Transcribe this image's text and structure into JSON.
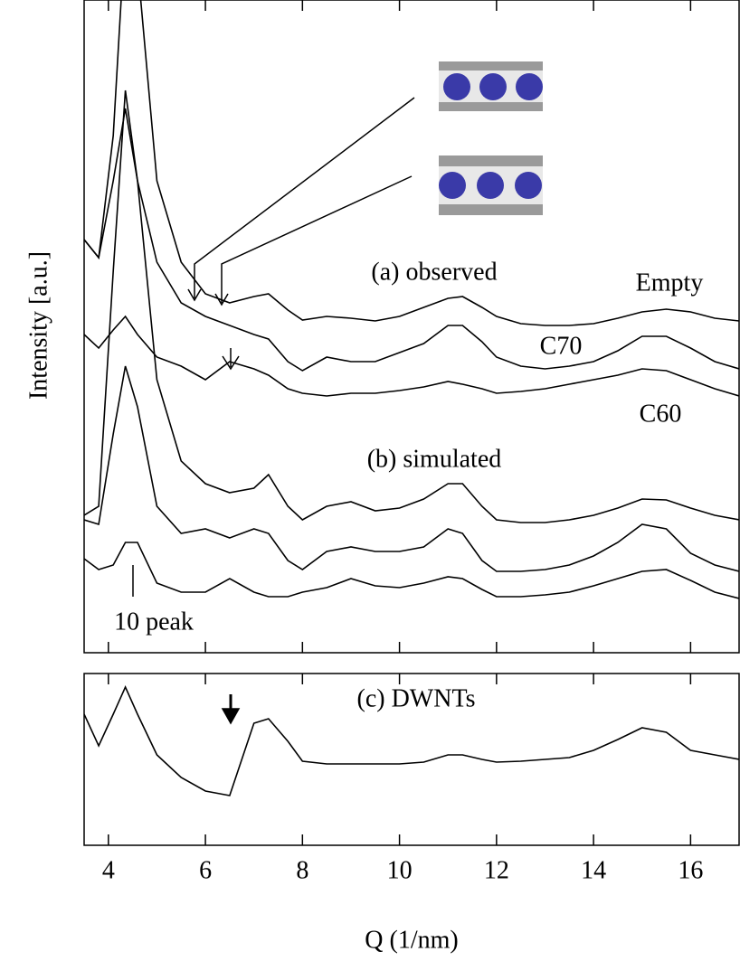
{
  "chart_data": [
    {
      "type": "line",
      "ylabel": "Intensity [a.u.]",
      "xlim": [
        3.5,
        17
      ],
      "ylim": [
        0,
        722
      ],
      "annotations": [
        "(a) observed",
        "(b) simulated",
        "10 peak"
      ],
      "x": [
        3.5,
        3.8,
        4.1,
        4.35,
        4.6,
        5,
        5.5,
        6,
        6.5,
        7,
        7.3,
        7.7,
        8,
        8.5,
        9,
        9.5,
        10,
        10.5,
        11,
        11.3,
        11.7,
        12,
        12.5,
        13,
        13.5,
        14,
        14.5,
        15,
        15.5,
        16,
        16.5,
        17
      ],
      "series": [
        {
          "name": "Empty",
          "color": "#000000",
          "values": [
            457,
            437,
            572,
            802,
            762,
            522,
            432,
            397,
            387,
            394,
            397,
            379,
            368,
            372,
            370,
            367,
            372,
            382,
            392,
            394,
            382,
            372,
            364,
            362,
            362,
            364,
            370,
            377,
            380,
            377,
            370,
            367
          ]
        },
        {
          "name": "C70",
          "color": "#000000",
          "values": [
            457,
            437,
            522,
            602,
            522,
            432,
            387,
            372,
            362,
            352,
            347,
            322,
            312,
            327,
            322,
            322,
            332,
            342,
            362,
            362,
            344,
            327,
            317,
            314,
            317,
            322,
            334,
            350,
            350,
            337,
            322,
            314
          ]
        },
        {
          "name": "C60",
          "color": "#000000",
          "values": [
            352,
            337,
            357,
            372,
            352,
            327,
            317,
            302,
            322,
            314,
            307,
            292,
            287,
            284,
            287,
            287,
            290,
            294,
            300,
            297,
            292,
            287,
            289,
            292,
            297,
            302,
            307,
            314,
            312,
            302,
            292,
            284
          ]
        },
        {
          "color": "#000000",
          "values": [
            152,
            162,
            422,
            622,
            522,
            302,
            212,
            187,
            177,
            182,
            197,
            162,
            147,
            162,
            167,
            157,
            160,
            170,
            187,
            187,
            162,
            147,
            144,
            144,
            147,
            152,
            160,
            170,
            169,
            160,
            152,
            147
          ]
        },
        {
          "color": "#000000",
          "values": [
            147,
            142,
            242,
            317,
            272,
            162,
            132,
            137,
            127,
            137,
            132,
            102,
            92,
            112,
            117,
            112,
            112,
            117,
            137,
            132,
            102,
            90,
            90,
            92,
            97,
            107,
            122,
            142,
            137,
            110,
            97,
            90
          ]
        },
        {
          "color": "#000000",
          "values": [
            104,
            92,
            97,
            122,
            122,
            77,
            67,
            67,
            82,
            67,
            62,
            62,
            67,
            72,
            82,
            74,
            72,
            77,
            84,
            82,
            70,
            62,
            62,
            64,
            67,
            74,
            82,
            90,
            92,
            80,
            67,
            60
          ]
        }
      ]
    },
    {
      "type": "line",
      "xlabel": "Q (1/nm)",
      "xlim": [
        3.5,
        17
      ],
      "ylim": [
        0,
        190
      ],
      "xticks": [
        4,
        6,
        8,
        10,
        12,
        14,
        16
      ],
      "x": [
        3.5,
        3.8,
        4.1,
        4.35,
        4.6,
        5,
        5.5,
        6,
        6.5,
        7,
        7.3,
        7.7,
        8,
        8.5,
        9,
        9.5,
        10,
        10.5,
        11,
        11.3,
        11.7,
        12,
        12.5,
        13,
        13.5,
        14,
        14.5,
        15,
        15.5,
        16,
        16.5,
        17
      ],
      "series": [
        {
          "name": "(c) DWNTs",
          "color": "#000000",
          "values": [
            145,
            110,
            145,
            175,
            145,
            100,
            75,
            60,
            55,
            135,
            140,
            115,
            93,
            90,
            90,
            90,
            90,
            92,
            100,
            100,
            95,
            92,
            93,
            95,
            97,
            105,
            117,
            130,
            125,
            105,
            100,
            95
          ]
        }
      ]
    }
  ]
}
